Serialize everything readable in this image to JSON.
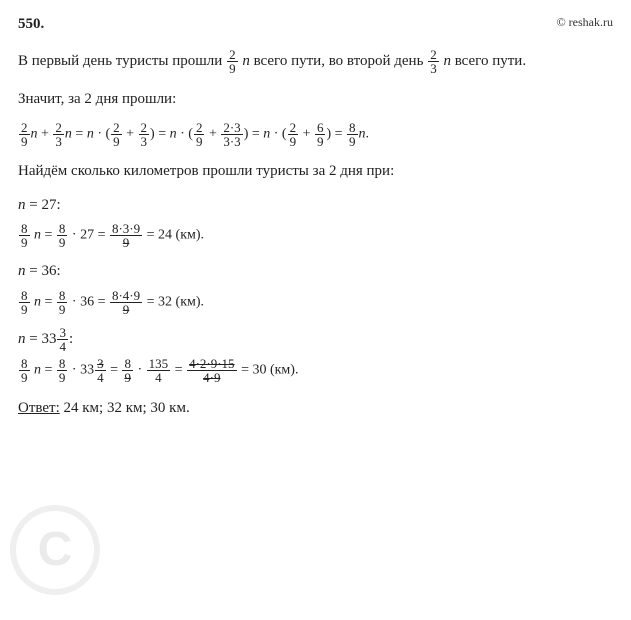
{
  "header": {
    "problem_number": "550.",
    "site": "© reshak.ru"
  },
  "text": {
    "p1_a": "В первый день туристы прошли ",
    "p1_b": " всего пути, во второй день ",
    "p1_c": "  всего пути.",
    "p2": "Значит, за 2 дня прошли:",
    "p3": "Найдём сколько километров прошли туристы за 2 дня при:",
    "case1": " = 27:",
    "case1_result": " = 24 (км).",
    "case2": " = 36:",
    "case2_result": " = 32 (км).",
    "case3_suffix": ":",
    "case3_result": " = 30 (км).",
    "answer_label": "Ответ:",
    "answer_value": " 24 км; 32 км; 30 км."
  },
  "fractions": {
    "f29": {
      "num": "2",
      "den": "9"
    },
    "f23": {
      "num": "2",
      "den": "3"
    },
    "f233": {
      "num": "2·3",
      "den": "3·3"
    },
    "f69": {
      "num": "6",
      "den": "9"
    },
    "f89": {
      "num": "8",
      "den": "9"
    },
    "f839_9": {
      "num": "8·3·9",
      "den": "9"
    },
    "f849_9": {
      "num": "8·4·9",
      "den": "9"
    },
    "f33_34": {
      "num": "3",
      "den": "4"
    },
    "f135_4": {
      "num": "135",
      "den": "4"
    },
    "f_last": {
      "num": "4·2·9·15",
      "den": "4·9"
    }
  },
  "watermark": {
    "letter": "C"
  },
  "styles": {
    "text_color": "#222222",
    "bg_color": "#ffffff",
    "watermark_color": "#d8d8d8",
    "font_family": "Times New Roman",
    "base_fontsize": 15
  }
}
